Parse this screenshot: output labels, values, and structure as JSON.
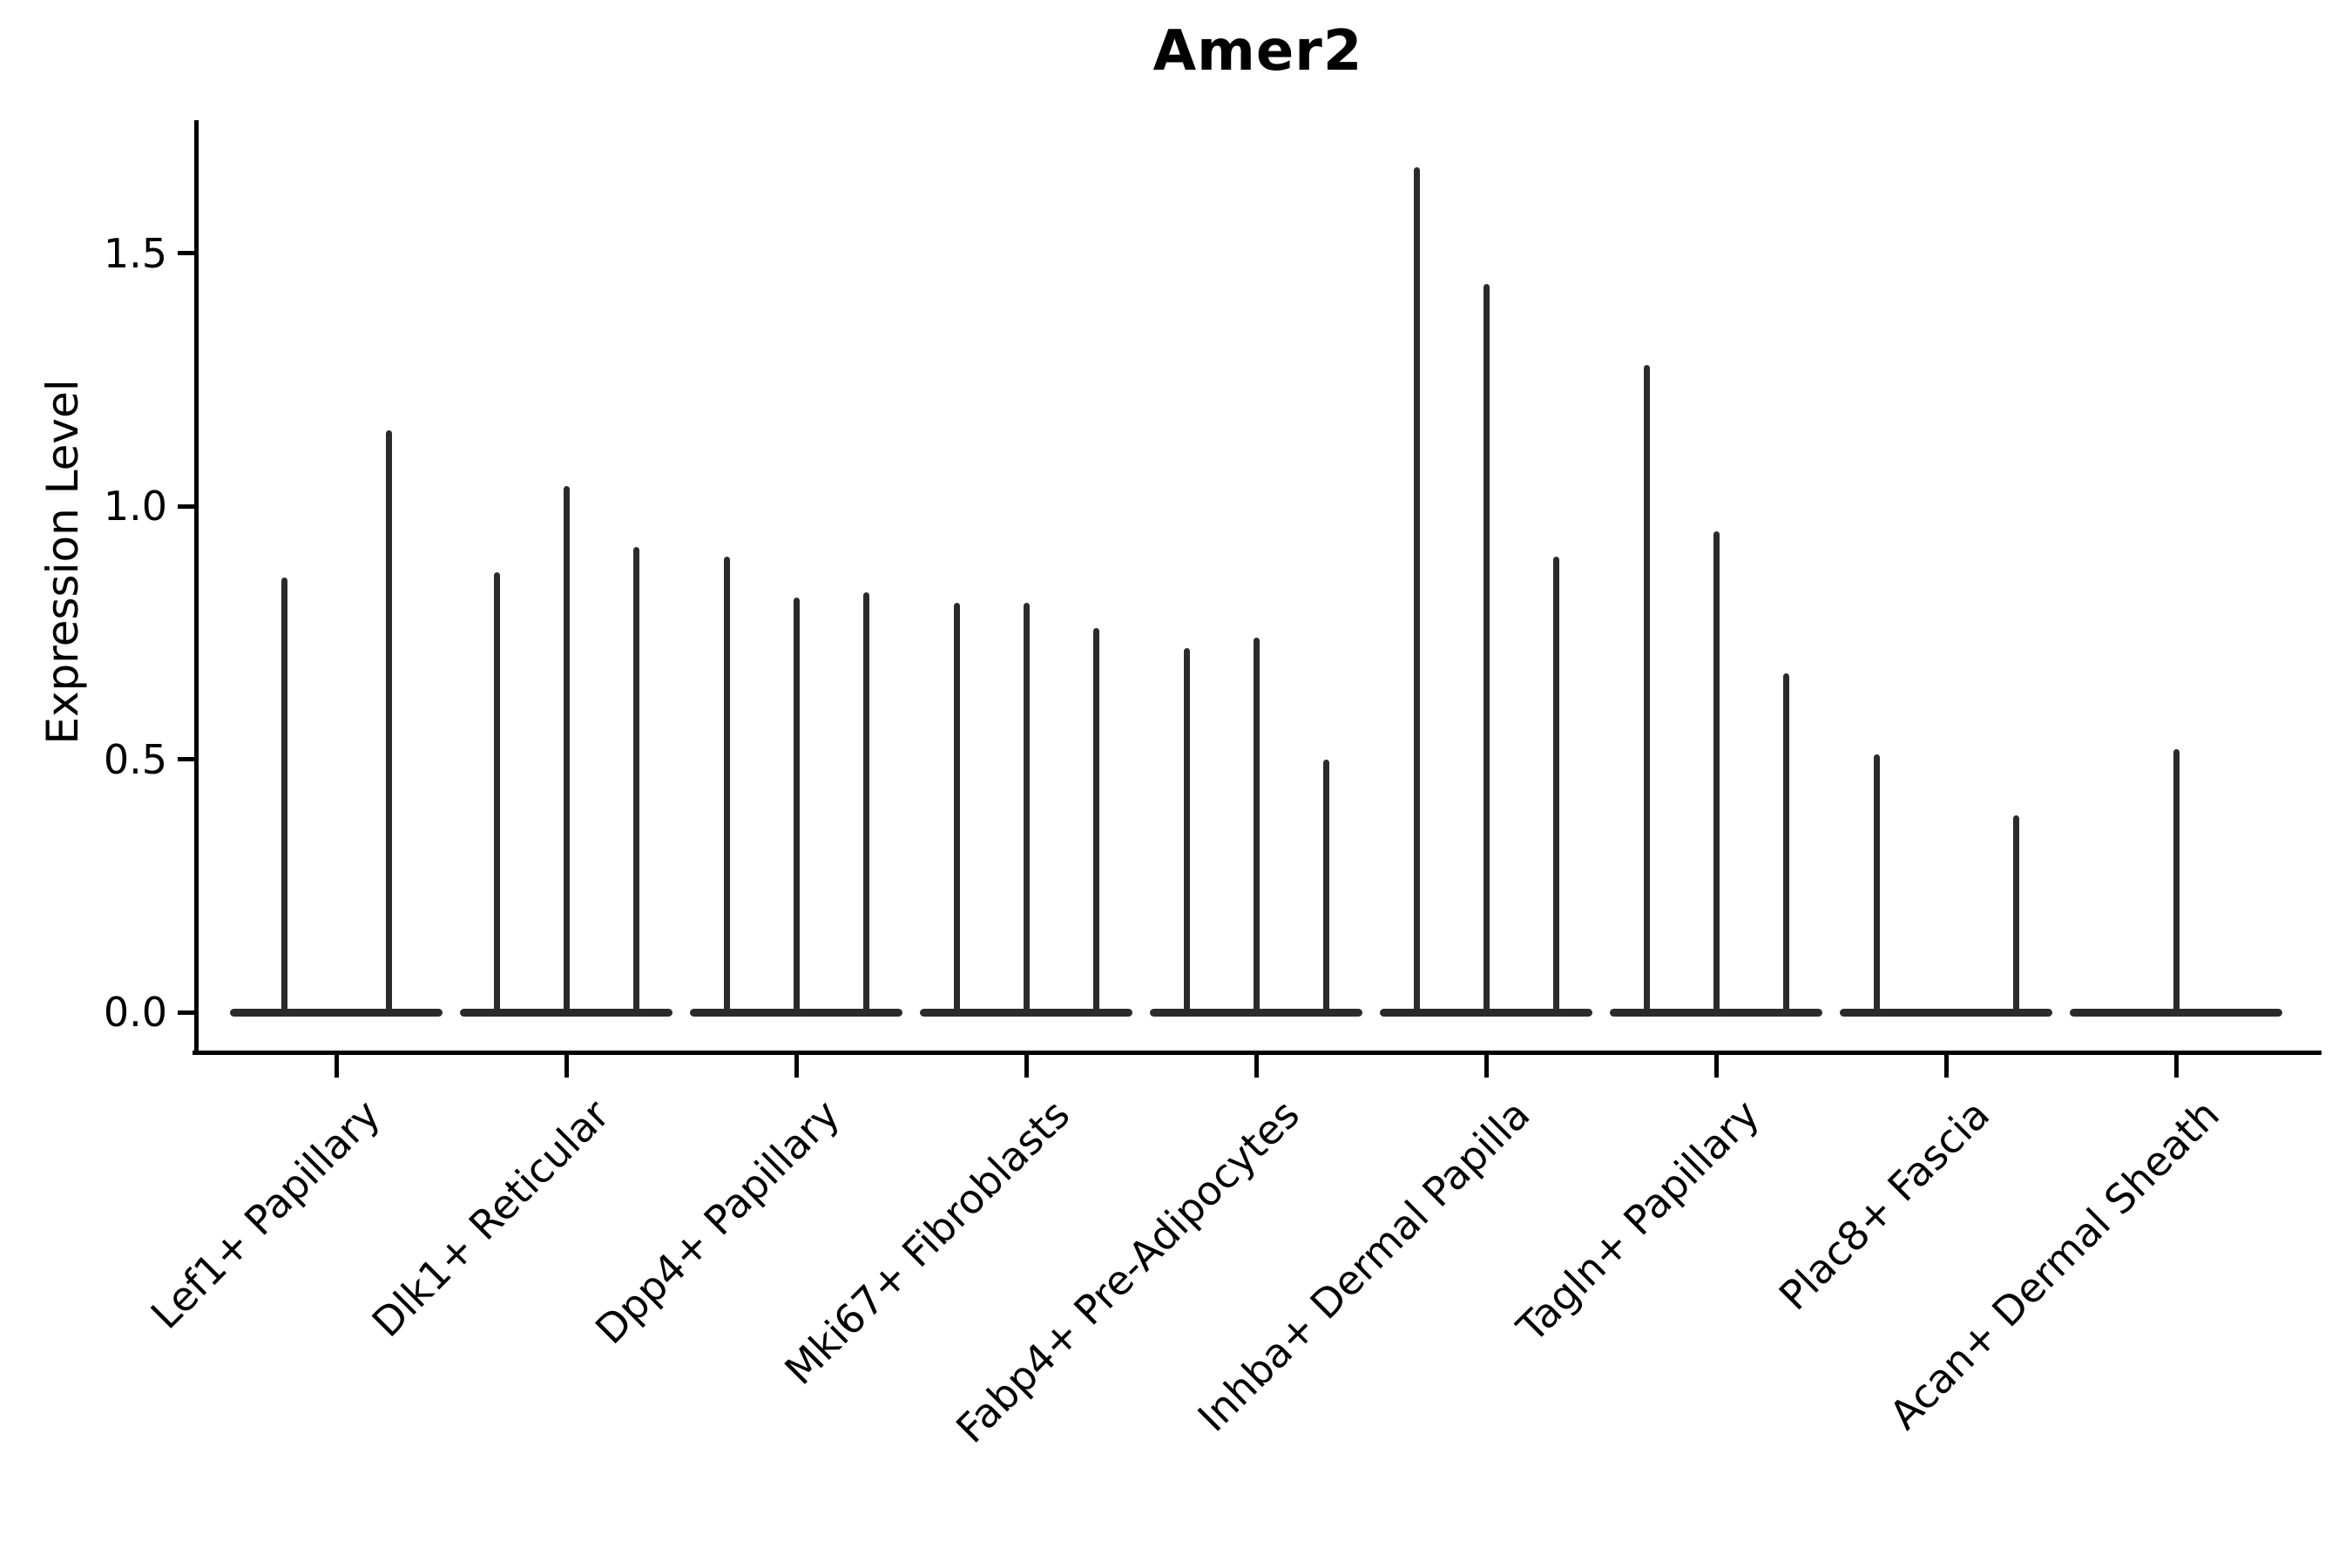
{
  "chart_data": {
    "type": "violin",
    "title": "Amer2",
    "ylabel": "Expression Level",
    "xlabel": "",
    "ylim": [
      0,
      1.76
    ],
    "yticks": [
      0.0,
      0.5,
      1.0,
      1.5
    ],
    "categories": [
      "Lef1+ Papillary",
      "Dlk1+ Reticular",
      "Dpp4+ Papillary",
      "Mki67+ Fibroblasts",
      "Fabp4+ Pre-Adipocytes",
      "Inhba+ Dermal Papilla",
      "Tagln+ Papillary",
      "Plac8+ Fascia",
      "Acan+ Dermal Sheath"
    ],
    "series": [
      {
        "category": "Lef1+ Papillary",
        "violins": [
          {
            "offset": -60,
            "peak": 0.86
          },
          {
            "offset": 60,
            "peak": 1.15
          }
        ]
      },
      {
        "category": "Dlk1+ Reticular",
        "violins": [
          {
            "offset": -80,
            "peak": 0.87
          },
          {
            "offset": 0,
            "peak": 1.04
          },
          {
            "offset": 80,
            "peak": 0.92
          }
        ]
      },
      {
        "category": "Dpp4+ Papillary",
        "violins": [
          {
            "offset": -80,
            "peak": 0.9
          },
          {
            "offset": 0,
            "peak": 0.82
          },
          {
            "offset": 80,
            "peak": 0.83
          }
        ]
      },
      {
        "category": "Mki67+ Fibroblasts",
        "violins": [
          {
            "offset": -80,
            "peak": 0.81
          },
          {
            "offset": 0,
            "peak": 0.81
          },
          {
            "offset": 80,
            "peak": 0.76
          }
        ]
      },
      {
        "category": "Fabp4+ Pre-Adipocytes",
        "violins": [
          {
            "offset": -80,
            "peak": 0.72
          },
          {
            "offset": 0,
            "peak": 0.74
          },
          {
            "offset": 80,
            "peak": 0.5
          }
        ]
      },
      {
        "category": "Inhba+ Dermal Papilla",
        "violins": [
          {
            "offset": -80,
            "peak": 1.67
          },
          {
            "offset": 0,
            "peak": 1.44
          },
          {
            "offset": 80,
            "peak": 0.9
          }
        ]
      },
      {
        "category": "Tagln+ Papillary",
        "violins": [
          {
            "offset": -80,
            "peak": 1.28
          },
          {
            "offset": 0,
            "peak": 0.95
          },
          {
            "offset": 80,
            "peak": 0.67
          }
        ]
      },
      {
        "category": "Plac8+ Fascia",
        "violins": [
          {
            "offset": -80,
            "peak": 0.51
          },
          {
            "offset": 80,
            "peak": 0.39
          }
        ]
      },
      {
        "category": "Acan+ Dermal Sheath",
        "violins": [
          {
            "offset": 0,
            "peak": 0.52
          }
        ]
      }
    ],
    "layout_hints": {
      "grid": false,
      "legend": "none",
      "spines": [
        "left",
        "bottom"
      ],
      "x_tick_rotation": 45
    },
    "colors": {
      "ink": "#000000",
      "violin": "#2b2b2b",
      "background": "#ffffff"
    }
  }
}
